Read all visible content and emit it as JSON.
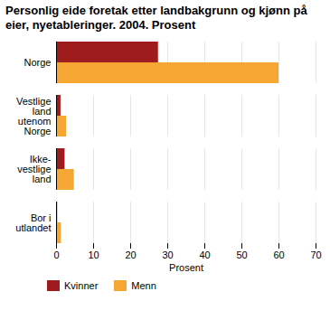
{
  "chart_data": {
    "type": "bar",
    "title": "Personlig eide foretak etter landbakgrunn og kjønn på eier, nyetableringer. 2004. Prosent",
    "orientation": "horizontal",
    "categories": [
      "Norge",
      "Vestlige land utenom Norge",
      "Ikke-vestlige land",
      "Bor i utlandet"
    ],
    "series": [
      {
        "name": "Kvinner",
        "color": "#9e1b1e",
        "values": [
          27.5,
          1.2,
          2.3,
          0.3
        ]
      },
      {
        "name": "Menn",
        "color": "#f6a633",
        "values": [
          60,
          2.7,
          4.8,
          1.3
        ]
      }
    ],
    "x_label": "Prosent",
    "xlim": [
      0,
      70
    ],
    "xticks": [
      0,
      10,
      20,
      30,
      40,
      50,
      60,
      70
    ],
    "grid": true,
    "legend": "bottom"
  }
}
